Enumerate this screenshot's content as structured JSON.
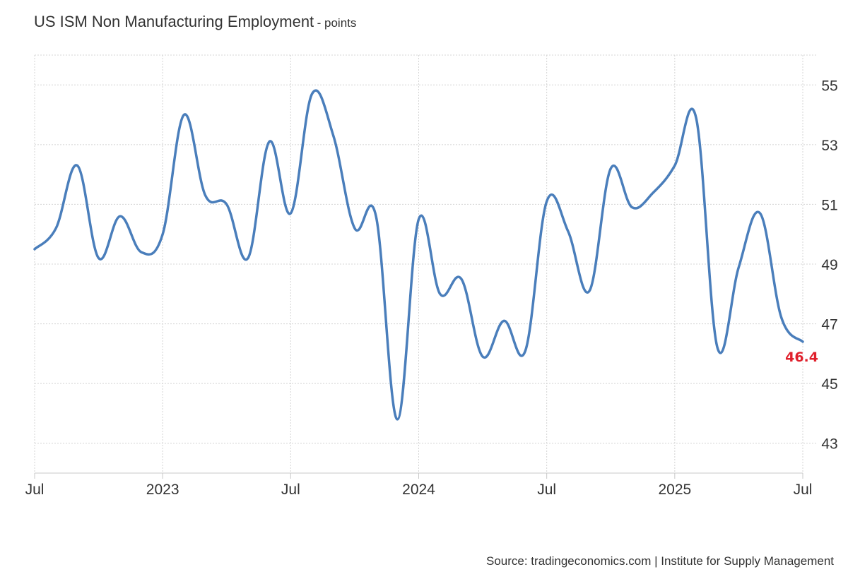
{
  "header": {
    "title": "US ISM Non Manufacturing Employment",
    "unit": "- points"
  },
  "footer": {
    "source": "Source: tradingeconomics.com | Institute for Supply Management"
  },
  "colors": {
    "line": "#4a7ebb",
    "last_value": "#e0202c",
    "grid": "#d4d4d4",
    "axis": "#c8c8c8"
  },
  "chart_data": {
    "type": "line",
    "title": "US ISM Non Manufacturing Employment",
    "ylabel": "points",
    "xlabel": "",
    "ylim": [
      42,
      56
    ],
    "xlim": [
      "2022-07",
      "2025-07"
    ],
    "yticks": [
      43,
      45,
      47,
      49,
      51,
      53,
      55
    ],
    "xticks": [
      {
        "date": "2022-07",
        "label": "Jul"
      },
      {
        "date": "2023-01",
        "label": "2023"
      },
      {
        "date": "2023-07",
        "label": "Jul"
      },
      {
        "date": "2024-01",
        "label": "2024"
      },
      {
        "date": "2024-07",
        "label": "Jul"
      },
      {
        "date": "2025-01",
        "label": "2025"
      },
      {
        "date": "2025-07",
        "label": "Jul"
      }
    ],
    "grid": true,
    "y_axis_side": "right",
    "last_value_label": "46.4",
    "series": [
      {
        "x": [
          "2022-07",
          "2022-08",
          "2022-09",
          "2022-10",
          "2022-11",
          "2022-12",
          "2023-01",
          "2023-02",
          "2023-03",
          "2023-04",
          "2023-05",
          "2023-06",
          "2023-07",
          "2023-08",
          "2023-09",
          "2023-10",
          "2023-11",
          "2023-12",
          "2024-01",
          "2024-02",
          "2024-03",
          "2024-04",
          "2024-05",
          "2024-06",
          "2024-07",
          "2024-08",
          "2024-09",
          "2024-10",
          "2024-11",
          "2024-12",
          "2025-01",
          "2025-02",
          "2025-03",
          "2025-04",
          "2025-05",
          "2025-06",
          "2025-07"
        ],
        "values": [
          49.5,
          50.2,
          52.3,
          49.2,
          50.6,
          49.4,
          50.0,
          54.0,
          51.3,
          51.0,
          49.2,
          53.1,
          50.7,
          54.7,
          53.3,
          50.2,
          50.6,
          43.8,
          50.5,
          48.0,
          48.5,
          45.9,
          47.1,
          46.1,
          51.1,
          50.1,
          48.1,
          52.2,
          50.9,
          51.4,
          52.3,
          53.9,
          46.2,
          48.9,
          50.7,
          47.2,
          46.4
        ]
      }
    ]
  }
}
